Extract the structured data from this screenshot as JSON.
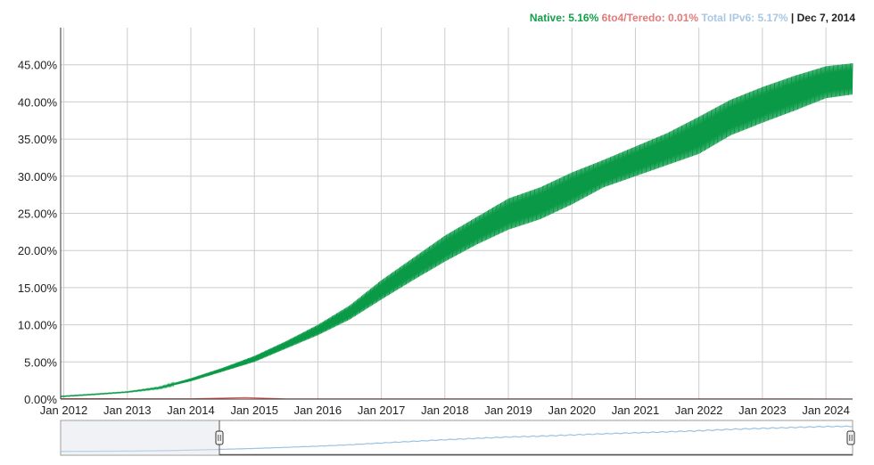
{
  "legend": {
    "native": "Native: 5.16%",
    "teredo": "6to4/Teredo: 0.01%",
    "total": "Total IPv6: 5.17%",
    "separator": "|",
    "date": "Dec 7, 2014"
  },
  "colors": {
    "native": "#0a9a47",
    "teredo": "#e05a5a",
    "total": "#9cc2e0",
    "grid": "#cccccc",
    "axis": "#333333"
  },
  "chart_data": {
    "type": "line",
    "title": "",
    "xlabel": "",
    "ylabel": "",
    "x_ticks": [
      "Jan 2012",
      "Jan 2013",
      "Jan 2014",
      "Jan 2015",
      "Jan 2016",
      "Jan 2017",
      "Jan 2018",
      "Jan 2019",
      "Jan 2020",
      "Jan 2021",
      "Jan 2022",
      "Jan 2023",
      "Jan 2024"
    ],
    "y_ticks": [
      "0.00%",
      "5.00%",
      "10.00%",
      "15.00%",
      "20.00%",
      "25.00%",
      "30.00%",
      "35.00%",
      "40.00%",
      "45.00%"
    ],
    "xlim": [
      2011.95,
      2024.42
    ],
    "ylim": [
      0,
      50
    ],
    "series": [
      {
        "name": "Native",
        "band": "upper",
        "x": [
          2011.95,
          2012.5,
          2013.0,
          2013.5,
          2014.0,
          2014.5,
          2015.0,
          2015.5,
          2016.0,
          2016.5,
          2017.0,
          2017.5,
          2018.0,
          2018.5,
          2019.0,
          2019.5,
          2020.0,
          2020.5,
          2021.0,
          2021.5,
          2022.0,
          2022.5,
          2023.0,
          2023.5,
          2024.0,
          2024.42
        ],
        "values": [
          0.4,
          0.7,
          1.0,
          1.6,
          2.8,
          4.2,
          5.8,
          7.8,
          10.0,
          12.6,
          16.0,
          19.0,
          22.0,
          24.5,
          27.0,
          28.5,
          30.5,
          32.2,
          34.0,
          35.8,
          38.0,
          40.3,
          42.0,
          43.5,
          44.8,
          45.2
        ]
      },
      {
        "name": "Native",
        "band": "lower",
        "x": [
          2011.95,
          2012.5,
          2013.0,
          2013.5,
          2014.0,
          2014.5,
          2015.0,
          2015.5,
          2016.0,
          2016.5,
          2017.0,
          2017.5,
          2018.0,
          2018.5,
          2019.0,
          2019.5,
          2020.0,
          2020.5,
          2021.0,
          2021.5,
          2022.0,
          2022.5,
          2023.0,
          2023.5,
          2024.0,
          2024.42
        ],
        "values": [
          0.3,
          0.6,
          0.9,
          1.4,
          2.4,
          3.7,
          5.0,
          6.8,
          8.6,
          10.7,
          13.4,
          16.0,
          18.5,
          20.8,
          22.8,
          24.2,
          26.2,
          28.5,
          30.0,
          31.5,
          33.0,
          35.5,
          37.2,
          38.8,
          40.5,
          41.0
        ]
      },
      {
        "name": "6to4/Teredo",
        "x": [
          2011.95,
          2013.0,
          2014.0,
          2014.85,
          2015.5,
          2018.0,
          2024.42
        ],
        "values": [
          0.05,
          0.04,
          0.03,
          0.2,
          0.02,
          0.02,
          0.01
        ]
      }
    ],
    "navigator": {
      "series": "Total IPv6",
      "selected_range": [
        "Dec 7, 2014",
        "Jan 2024"
      ]
    }
  }
}
